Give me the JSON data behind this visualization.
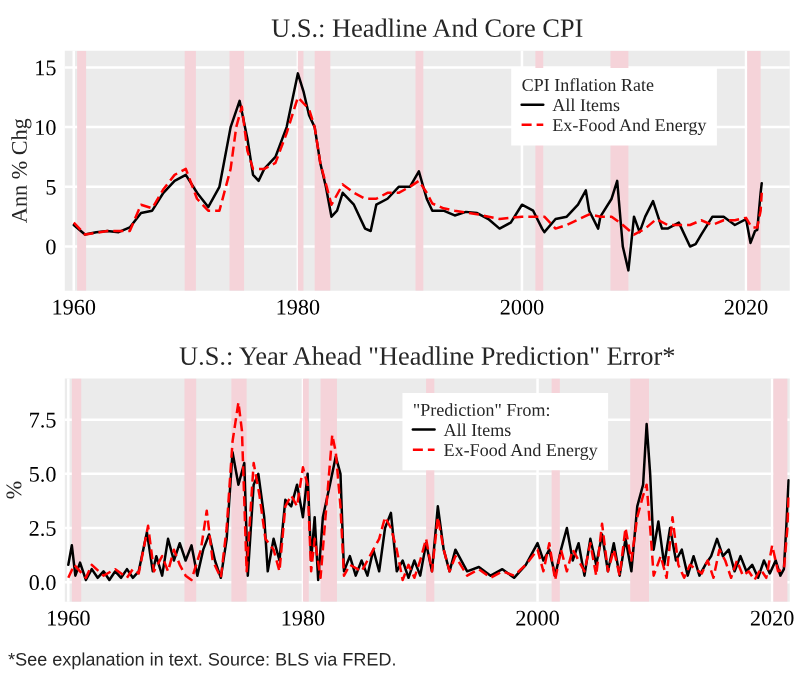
{
  "chart_data": [
    {
      "type": "line",
      "title": "U.S.: Headline And Core CPI",
      "ylabel": "Ann % Chg",
      "legend_title": "CPI Inflation Rate",
      "legend": "top right",
      "grid": true,
      "xlim": [
        1959.2,
        2023.9
      ],
      "xticks": [
        1960,
        1980,
        2000,
        2020
      ],
      "ylim": [
        -3.7,
        16.4
      ],
      "yticks": [
        0,
        5,
        10,
        15
      ],
      "bands": [
        {
          "axis": "x",
          "from": 1960.3,
          "to": 1961.1,
          "color": "#f5d3d9"
        },
        {
          "axis": "x",
          "from": 1969.9,
          "to": 1970.9,
          "color": "#f5d3d9"
        },
        {
          "axis": "x",
          "from": 1973.9,
          "to": 1975.2,
          "color": "#f5d3d9"
        },
        {
          "axis": "x",
          "from": 1980.0,
          "to": 1980.5,
          "color": "#f5d3d9"
        },
        {
          "axis": "x",
          "from": 1981.5,
          "to": 1982.9,
          "color": "#f5d3d9"
        },
        {
          "axis": "x",
          "from": 1990.5,
          "to": 1991.2,
          "color": "#f5d3d9"
        },
        {
          "axis": "x",
          "from": 2001.2,
          "to": 2001.9,
          "color": "#f5d3d9"
        },
        {
          "axis": "x",
          "from": 2007.9,
          "to": 2009.5,
          "color": "#f5d3d9"
        },
        {
          "axis": "x",
          "from": 2020.1,
          "to": 2021.3,
          "color": "#f5d3d9"
        }
      ],
      "series": [
        {
          "name": "All Items",
          "color": "#000000",
          "line_style": "solid",
          "x": [
            1960,
            1961,
            1962,
            1963,
            1964,
            1965,
            1966,
            1967,
            1968,
            1969,
            1970,
            1971,
            1972,
            1973,
            1973.5,
            1974,
            1974.8,
            1975.5,
            1976,
            1976.5,
            1977,
            1978,
            1979,
            1980,
            1980.5,
            1981,
            1981.5,
            1982,
            1982.5,
            1983,
            1983.5,
            1984,
            1985,
            1986,
            1986.5,
            1987,
            1988,
            1989,
            1990,
            1990.8,
            1991.5,
            1992,
            1993,
            1994,
            1995,
            1996,
            1997,
            1998,
            1999,
            2000,
            2001,
            2001.8,
            2002,
            2003,
            2004,
            2005,
            2005.7,
            2006,
            2006.8,
            2007,
            2008,
            2008.5,
            2009,
            2009.5,
            2010,
            2010.5,
            2011,
            2011.7,
            2012.5,
            2013,
            2014,
            2015,
            2015.5,
            2016,
            2017,
            2018,
            2019,
            2020,
            2020.4,
            2020.8,
            2021,
            2021.3,
            2021.4
          ],
          "values": [
            1.8,
            1.0,
            1.2,
            1.3,
            1.2,
            1.6,
            2.8,
            3.0,
            4.5,
            5.5,
            6.0,
            4.5,
            3.3,
            5.0,
            7.5,
            10.0,
            12.2,
            9.0,
            6.0,
            5.5,
            6.5,
            7.5,
            10,
            14.5,
            13,
            11,
            10,
            7.0,
            5,
            2.5,
            3.0,
            4.5,
            3.5,
            1.5,
            1.3,
            3.5,
            4.0,
            5.0,
            5.0,
            6.3,
            4.0,
            3.0,
            3.0,
            2.6,
            2.9,
            2.8,
            2.3,
            1.5,
            2.0,
            3.5,
            3.0,
            1.5,
            1.2,
            2.3,
            2.5,
            3.5,
            4.7,
            3.0,
            1.5,
            2.5,
            4.0,
            5.5,
            0.0,
            -2.0,
            2.5,
            1.2,
            2.5,
            3.8,
            1.5,
            1.5,
            2.0,
            0.0,
            0.2,
            1.0,
            2.5,
            2.5,
            1.8,
            2.3,
            0.3,
            1.3,
            1.4,
            4.5,
            5.3
          ]
        },
        {
          "name": "Ex-Food And Energy",
          "color": "#ff0000",
          "line_style": "dashed",
          "x": [
            1960,
            1961,
            1963,
            1965,
            1966,
            1967,
            1968,
            1969,
            1970,
            1971,
            1972,
            1973,
            1974,
            1974.5,
            1975,
            1975.5,
            1976,
            1977,
            1978,
            1979,
            1980,
            1980.5,
            1981,
            1981.5,
            1982,
            1983,
            1984,
            1985,
            1986,
            1987,
            1988,
            1989,
            1990,
            1990.8,
            1991.5,
            1992,
            1993,
            1994,
            1996,
            1998,
            2000,
            2002,
            2003,
            2004,
            2006,
            2007,
            2008,
            2009,
            2010,
            2011,
            2012,
            2013,
            2015,
            2016,
            2017,
            2018,
            2019,
            2020,
            2020.5,
            2021,
            2021.3,
            2021.4
          ],
          "values": [
            2.0,
            1.0,
            1.3,
            1.3,
            3.5,
            3.2,
            4.8,
            6.0,
            6.5,
            4.0,
            3.0,
            3.0,
            6.5,
            10,
            11.7,
            8.0,
            6.5,
            6.5,
            7.0,
            9.5,
            12.5,
            12,
            11.5,
            10,
            7,
            3.5,
            5.2,
            4.5,
            4.0,
            4.0,
            4.5,
            4.5,
            5.0,
            5.5,
            4.5,
            3.6,
            3.2,
            3.0,
            2.7,
            2.3,
            2.5,
            2.5,
            1.5,
            1.8,
            2.7,
            2.5,
            2.5,
            1.8,
            1.0,
            1.5,
            2.3,
            1.8,
            1.8,
            2.2,
            1.8,
            2.2,
            2.2,
            2.4,
            1.6,
            1.6,
            3.0,
            4.5
          ]
        }
      ]
    },
    {
      "type": "line",
      "title": "U.S.: Year Ahead \"Headline Prediction\" Error*",
      "ylabel": "%",
      "legend_title": "\"Prediction\" From:",
      "legend": "top right",
      "grid": true,
      "xlim": [
        1959.7,
        2021.5
      ],
      "xticks": [
        1960,
        1980,
        2000,
        2020
      ],
      "ylim": [
        -0.9,
        9.4
      ],
      "yticks": [
        {
          "value": 0,
          "label": "0.0"
        },
        2.5,
        {
          "value": 5,
          "label": "5.0"
        },
        7.5
      ],
      "annotations": [
        "*See explanation in text. Source: BLS via FRED."
      ],
      "bands": [
        {
          "axis": "x",
          "from": 1960.3,
          "to": 1961.1,
          "color": "#f5d3d9"
        },
        {
          "axis": "x",
          "from": 1969.9,
          "to": 1970.9,
          "color": "#f5d3d9"
        },
        {
          "axis": "x",
          "from": 1973.9,
          "to": 1975.2,
          "color": "#f5d3d9"
        },
        {
          "axis": "x",
          "from": 1980.0,
          "to": 1980.5,
          "color": "#f5d3d9"
        },
        {
          "axis": "x",
          "from": 1981.5,
          "to": 1982.9,
          "color": "#f5d3d9"
        },
        {
          "axis": "x",
          "from": 1990.5,
          "to": 1991.2,
          "color": "#f5d3d9"
        },
        {
          "axis": "x",
          "from": 2001.2,
          "to": 2001.9,
          "color": "#f5d3d9"
        },
        {
          "axis": "x",
          "from": 2007.9,
          "to": 2009.5,
          "color": "#f5d3d9"
        },
        {
          "axis": "x",
          "from": 2020.1,
          "to": 2021.3,
          "color": "#f5d3d9"
        }
      ],
      "series": [
        {
          "name": "All Items",
          "color": "#000000",
          "line_style": "solid",
          "x": [
            1960,
            1960.3,
            1960.6,
            1961,
            1961.5,
            1962,
            1962.5,
            1963,
            1963.5,
            1964,
            1964.5,
            1965,
            1965.5,
            1966,
            1966.7,
            1967.2,
            1967.5,
            1968,
            1968.5,
            1969,
            1969.5,
            1970,
            1970.5,
            1971,
            1971.5,
            1972,
            1972.5,
            1973,
            1973.5,
            1974,
            1974.5,
            1975,
            1975.3,
            1975.8,
            1976.2,
            1976.7,
            1977,
            1977.5,
            1978,
            1978.5,
            1979,
            1979.5,
            1980,
            1980.4,
            1980.7,
            1981,
            1981.3,
            1981.7,
            1982.3,
            1982.8,
            1983.2,
            1983.5,
            1984,
            1984.5,
            1985,
            1985.5,
            1986,
            1986.5,
            1987,
            1987.5,
            1988,
            1988.5,
            1989,
            1989.5,
            1990,
            1990.5,
            1991,
            1991.5,
            1992,
            1992.5,
            1993,
            1994,
            1995,
            1996,
            1997,
            1998,
            1999,
            2000,
            2000.5,
            2001,
            2001.5,
            2002,
            2002.5,
            2003,
            2003.5,
            2004,
            2004.5,
            2005,
            2005.5,
            2006,
            2006.5,
            2007,
            2007.5,
            2008,
            2008.5,
            2009,
            2009.3,
            2009.6,
            2009.9,
            2010.3,
            2010.8,
            2011.3,
            2011.8,
            2012.3,
            2012.8,
            2013.3,
            2013.8,
            2014.3,
            2014.8,
            2015.3,
            2015.8,
            2016.3,
            2016.8,
            2017.3,
            2017.8,
            2018.3,
            2018.8,
            2019.3,
            2019.8,
            2020.3,
            2020.7,
            2021.0,
            2021.2,
            2021.4
          ],
          "values": [
            0.8,
            1.7,
            0.3,
            0.9,
            0.1,
            0.6,
            0.2,
            0.5,
            0.1,
            0.5,
            0.2,
            0.6,
            0.2,
            0.5,
            2.3,
            0.5,
            1.2,
            0.3,
            2.0,
            1.0,
            1.8,
            1.0,
            1.7,
            0.3,
            1.5,
            2.2,
            1.0,
            0.2,
            2.0,
            6.0,
            4.5,
            5.5,
            0.3,
            4.5,
            5.0,
            3.0,
            0.5,
            2.0,
            1.0,
            3.8,
            3.5,
            4.5,
            3.0,
            5.0,
            1.0,
            3.0,
            0.1,
            3.0,
            4.5,
            5.8,
            5.0,
            0.5,
            1.2,
            0.3,
            1.0,
            0.3,
            1.5,
            0.5,
            2.5,
            3.2,
            0.5,
            1.0,
            0.2,
            1.0,
            0.3,
            1.8,
            0.5,
            3.5,
            1.5,
            0.5,
            1.5,
            0.5,
            0.7,
            0.3,
            0.6,
            0.2,
            0.8,
            1.8,
            1.0,
            1.5,
            0.3,
            1.5,
            2.5,
            1.0,
            1.8,
            0.3,
            2.0,
            0.8,
            2.2,
            0.5,
            1.8,
            0.3,
            2.0,
            0.5,
            3.5,
            4.5,
            7.3,
            5.0,
            1.5,
            2.8,
            0.8,
            2.5,
            1.0,
            1.5,
            0.3,
            1.2,
            0.3,
            0.8,
            1.2,
            2.0,
            1.2,
            1.5,
            0.5,
            1.2,
            0.5,
            0.8,
            0.2,
            1.0,
            0.4,
            1.0,
            0.3,
            0.6,
            2.5,
            4.7
          ]
        },
        {
          "name": "Ex-Food And Energy",
          "color": "#ff0000",
          "line_style": "dashed",
          "x": [
            1960,
            1960.5,
            1961,
            1961.5,
            1962,
            1963,
            1964,
            1965,
            1965.5,
            1966,
            1966.8,
            1967.3,
            1968,
            1968.5,
            1969,
            1969.5,
            1970,
            1970.5,
            1971.3,
            1971.8,
            1972.3,
            1973,
            1973.5,
            1974,
            1974.5,
            1974.8,
            1975.2,
            1975.8,
            1976.3,
            1976.8,
            1977.5,
            1978,
            1978.5,
            1979,
            1979.5,
            1980,
            1980.4,
            1980.7,
            1981,
            1981.5,
            1982,
            1982.5,
            1982.8,
            1983.2,
            1983.5,
            1984,
            1985,
            1985.5,
            1986,
            1986.5,
            1987,
            1987.5,
            1988,
            1988.5,
            1989,
            1989.5,
            1990,
            1990.5,
            1991,
            1991.5,
            1992,
            1992.5,
            1993,
            1994,
            1995,
            1996,
            1997,
            1998,
            1999,
            2000,
            2000.5,
            2001,
            2001.5,
            2002,
            2002.5,
            2003,
            2004,
            2004.5,
            2005,
            2005.5,
            2006,
            2006.5,
            2007,
            2007.5,
            2008,
            2008.5,
            2009,
            2009.3,
            2009.6,
            2009.9,
            2010.5,
            2011,
            2011.5,
            2012,
            2012.5,
            2013,
            2014,
            2014.5,
            2015,
            2015.5,
            2016,
            2016.5,
            2017,
            2017.5,
            2018,
            2018.5,
            2019,
            2019.5,
            2020,
            2020.5,
            2021,
            2021.3,
            2021.4
          ],
          "values": [
            0.2,
            0.8,
            0.5,
            0.2,
            0.8,
            0.3,
            0.6,
            0.2,
            0.6,
            0.4,
            2.6,
            0.5,
            1.2,
            0.5,
            1.5,
            0.8,
            0.3,
            0.1,
            1.5,
            3.3,
            1.0,
            0.2,
            2.5,
            6.5,
            8.3,
            7.0,
            0.5,
            5.5,
            4.0,
            2.0,
            1.5,
            0.5,
            3.5,
            4.0,
            3.5,
            5.3,
            4.5,
            0.5,
            2.0,
            0.2,
            3.5,
            6.8,
            6.0,
            3.5,
            0.3,
            0.8,
            0.5,
            1.0,
            1.5,
            2.0,
            3.0,
            2.5,
            1.5,
            0.1,
            0.8,
            0.2,
            1.0,
            2.0,
            0.5,
            3.0,
            1.5,
            0.5,
            1.2,
            0.3,
            0.6,
            0.2,
            0.5,
            0.3,
            0.8,
            1.5,
            0.5,
            1.8,
            0.1,
            1.5,
            0.5,
            1.5,
            0.5,
            1.8,
            0.3,
            2.7,
            0.5,
            1.5,
            0.3,
            2.5,
            1.0,
            3.0,
            4.0,
            4.5,
            2.5,
            0.3,
            1.2,
            0.2,
            3.0,
            0.8,
            0.2,
            0.8,
            0.4,
            1.0,
            0.2,
            1.5,
            1.0,
            0.2,
            1.0,
            0.3,
            0.5,
            0.1,
            0.6,
            0.2,
            1.7,
            0.5,
            0.6,
            2.5,
            4.0
          ]
        }
      ]
    }
  ]
}
